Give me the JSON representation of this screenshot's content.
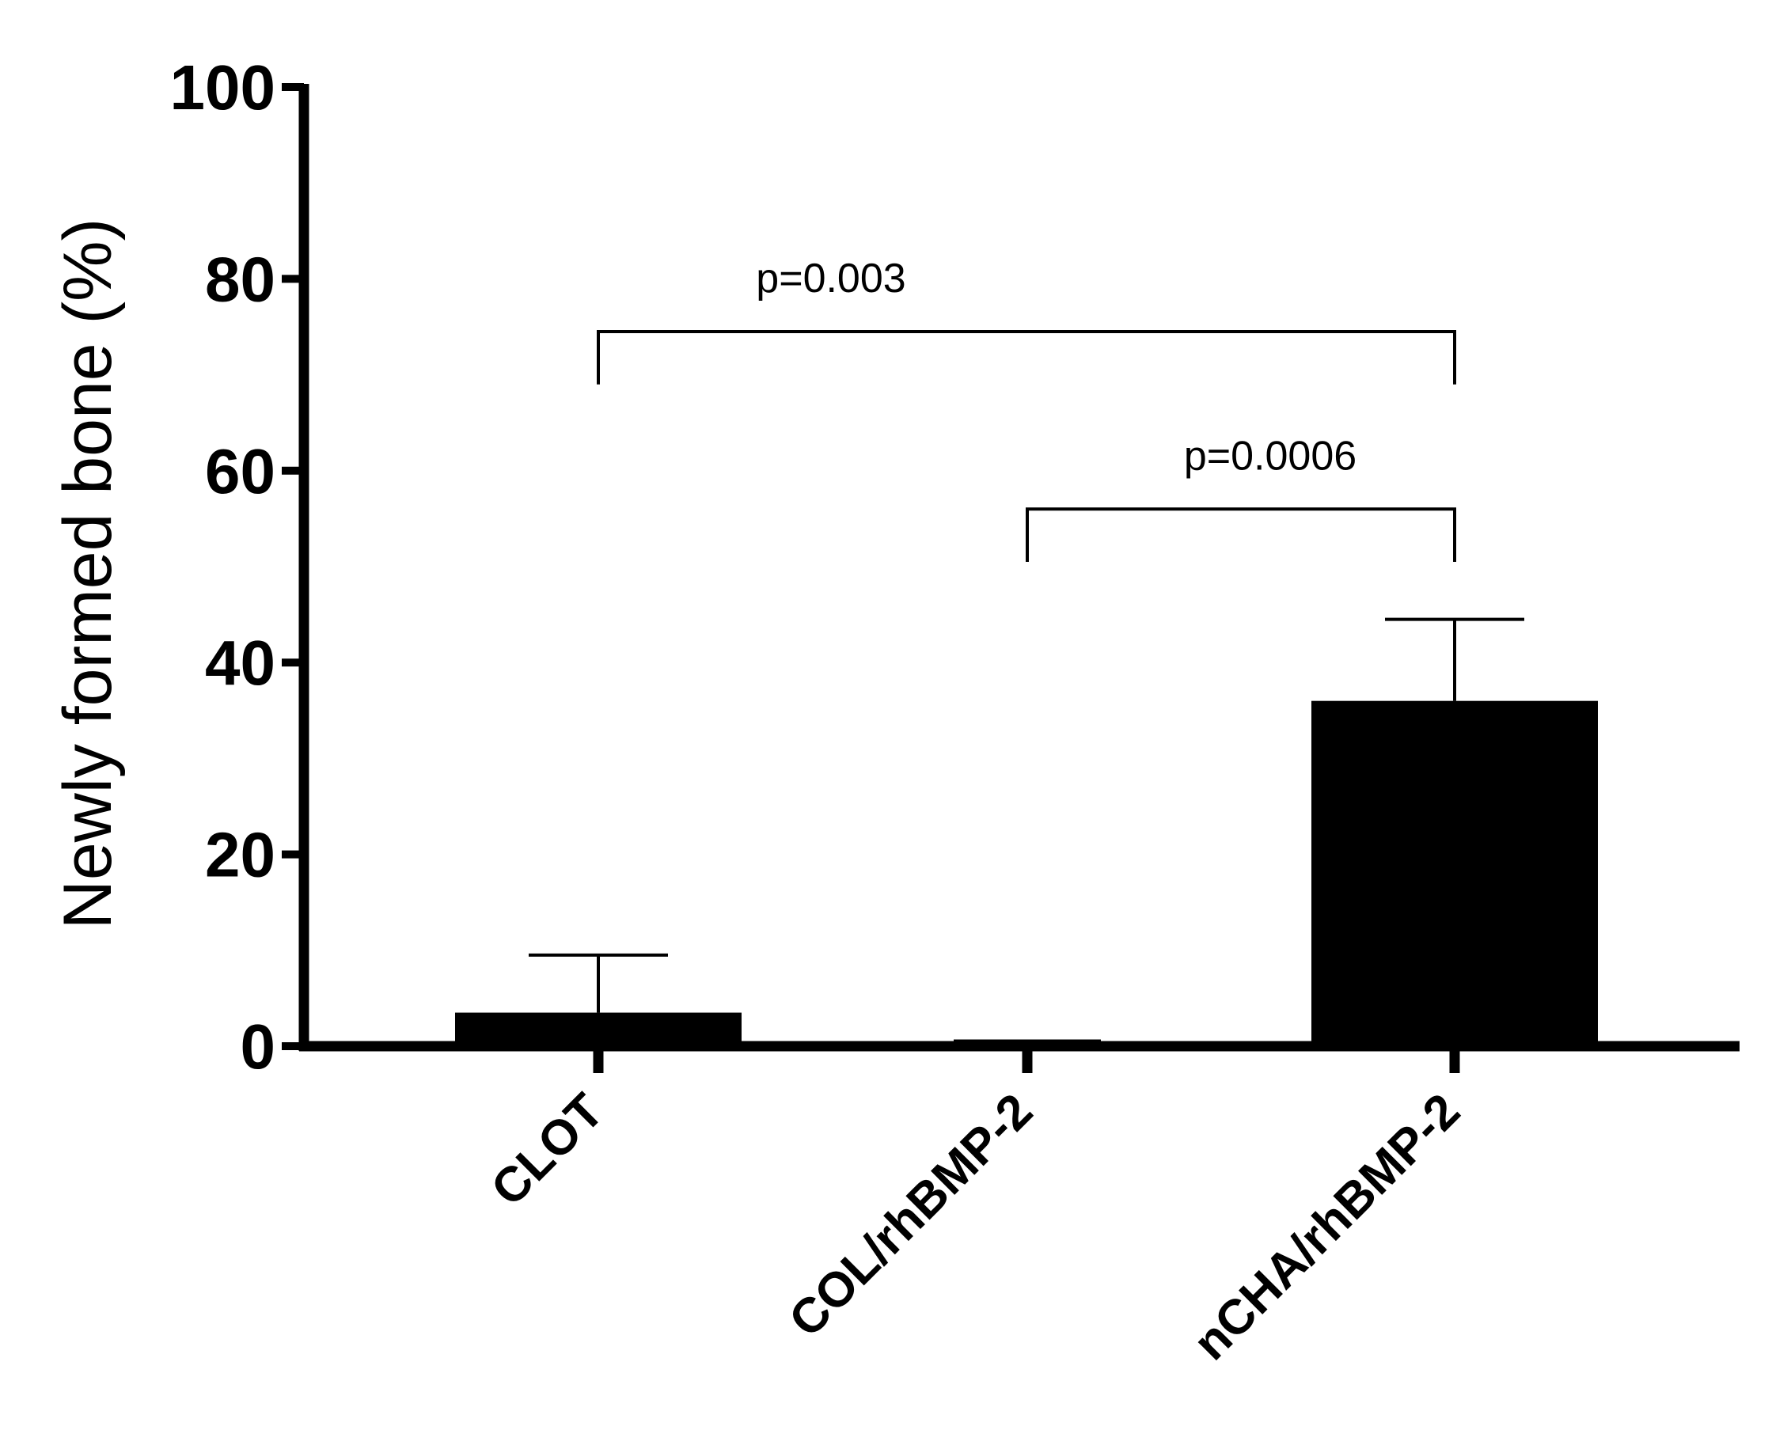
{
  "chart_data": {
    "type": "bar",
    "ylabel": "Newly formed bone (%)",
    "ylim": [
      0,
      100
    ],
    "yticks": [
      0,
      20,
      40,
      60,
      80,
      100
    ],
    "categories": [
      "CLOT",
      "COL/rhBMP-2",
      "nCHA/rhBMP-2"
    ],
    "values": [
      3.5,
      0.7,
      36
    ],
    "error_plus": [
      6,
      0,
      8.5
    ],
    "bar_color": "#000000",
    "grid": false,
    "significance": [
      {
        "label": "p=0.003",
        "from": 0,
        "to": 2,
        "y": 74.5,
        "drop": 5.5
      },
      {
        "label": "p=0.0006",
        "from": 1,
        "to": 2,
        "y": 56,
        "drop": 5.5
      }
    ]
  }
}
